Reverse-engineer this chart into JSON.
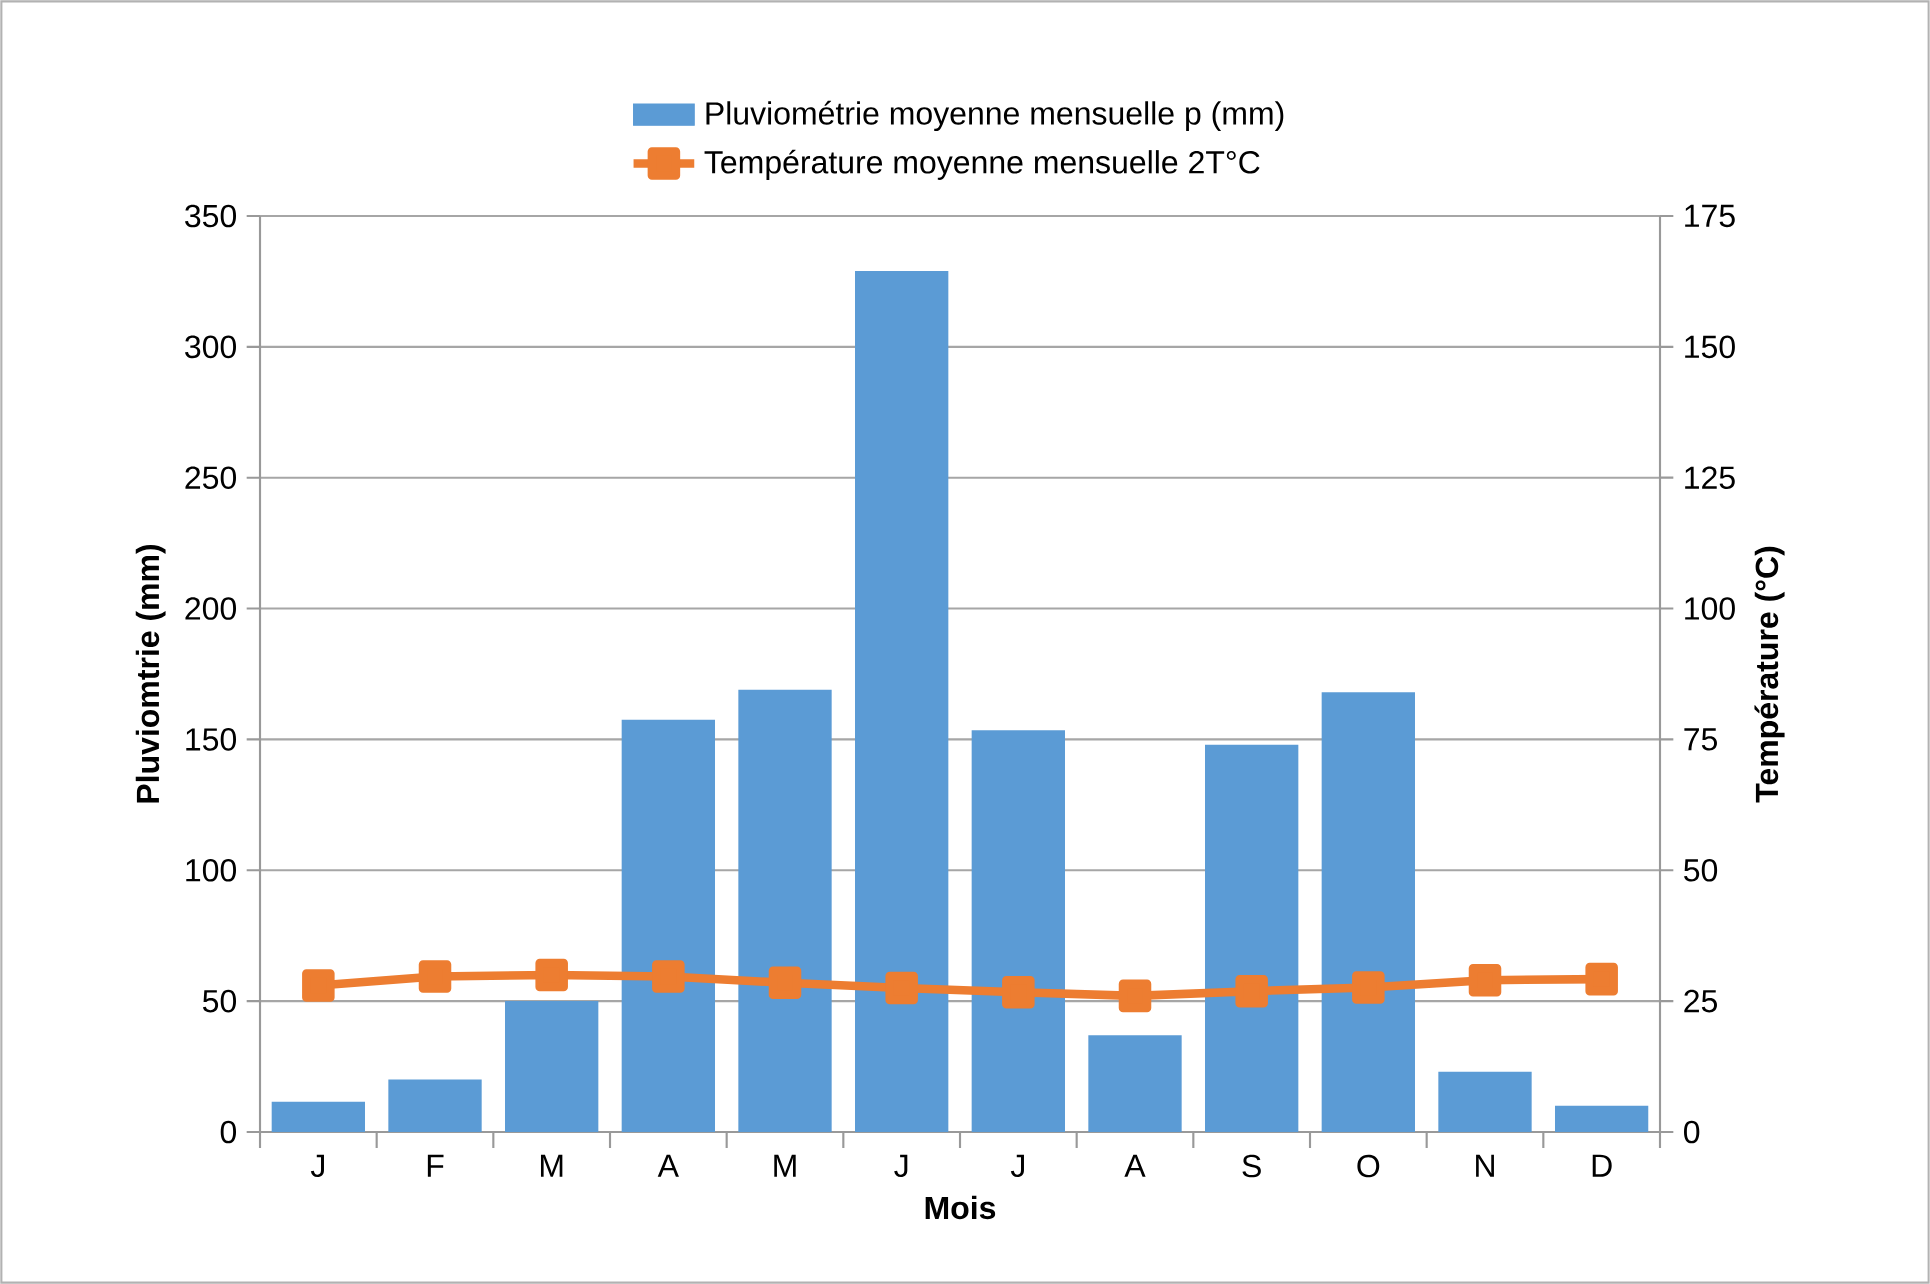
{
  "chart_data": {
    "type": "bar",
    "xlabel": "Mois",
    "ylabel": "Pluviomtrie (mm)",
    "y2label": "Température (°C)",
    "categories": [
      "J",
      "F",
      "M",
      "A",
      "M",
      "J",
      "J",
      "A",
      "S",
      "O",
      "N",
      "D"
    ],
    "series": [
      {
        "name": "Pluviométrie moyenne mensuelle p (mm)",
        "color": "#5b9bd5",
        "values": [
          11.5,
          20,
          50,
          157.5,
          169,
          329,
          153.5,
          37,
          148,
          168,
          23,
          10
        ]
      },
      {
        "name": "Température moyenne mensuelle 2T°C",
        "type": "line",
        "axis": "y2",
        "color": "#ed7d31",
        "values": [
          28,
          29.7,
          30,
          29.7,
          28.5,
          27.5,
          26.7,
          26,
          26.9,
          27.6,
          29,
          29.2
        ]
      }
    ],
    "ylim": [
      0,
      350
    ],
    "yticks": [
      0,
      50,
      100,
      150,
      200,
      250,
      300,
      350
    ],
    "y2lim": [
      0,
      175
    ],
    "y2ticks": [
      0,
      25,
      50,
      75,
      100,
      125,
      150,
      175
    ],
    "grid": "y",
    "legend": "top",
    "marker": "square",
    "line_style": "solid"
  }
}
